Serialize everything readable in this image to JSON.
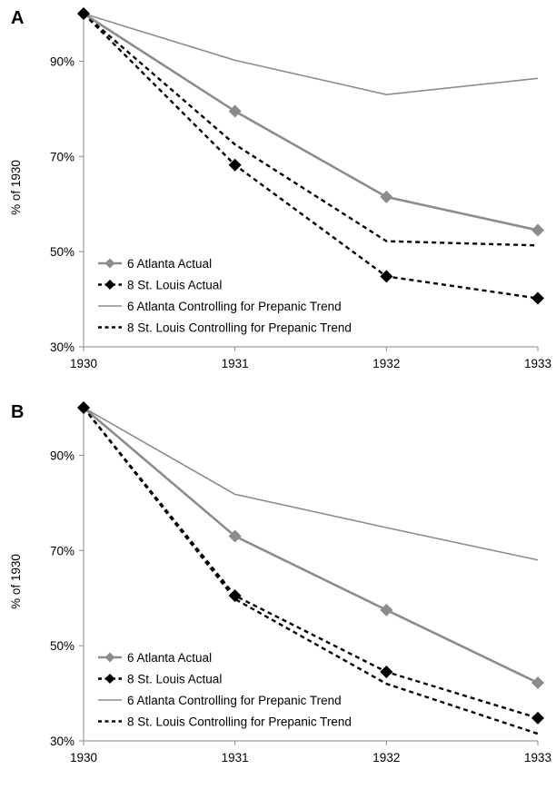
{
  "chart_data": [
    {
      "panel_label": "A",
      "type": "line",
      "ylabel": "% of 1930",
      "x": [
        "1930",
        "1931",
        "1932",
        "1933"
      ],
      "yticks": [
        "30%",
        "50%",
        "70%",
        "90%"
      ],
      "ylim": [
        30,
        100
      ],
      "legend_position": "bottom-left",
      "series": [
        {
          "name": "6 Atlanta Actual",
          "color": "#8c8c8c",
          "style": "solid",
          "marker": "diamond",
          "values": [
            100,
            79.5,
            61.5,
            54.5
          ]
        },
        {
          "name": "8 St. Louis Actual",
          "color": "#000000",
          "style": "dashed",
          "marker": "diamond",
          "values": [
            100,
            68.2,
            44.8,
            40.2
          ]
        },
        {
          "name": "6 Atlanta Controlling for Prepanic Trend",
          "color": "#8c8c8c",
          "style": "solid-thin",
          "marker": "none",
          "values": [
            100,
            90.2,
            83.0,
            86.4
          ]
        },
        {
          "name": "8 St. Louis Controlling for Prepanic Trend",
          "color": "#000000",
          "style": "dashed",
          "marker": "none",
          "values": [
            100,
            72.5,
            52.2,
            51.3
          ]
        }
      ]
    },
    {
      "panel_label": "B",
      "type": "line",
      "ylabel": "% of 1930",
      "x": [
        "1930",
        "1931",
        "1932",
        "1933"
      ],
      "yticks": [
        "30%",
        "50%",
        "70%",
        "90%"
      ],
      "ylim": [
        30,
        100
      ],
      "legend_position": "bottom-left",
      "series": [
        {
          "name": "6 Atlanta Actual",
          "color": "#8c8c8c",
          "style": "solid",
          "marker": "diamond",
          "values": [
            100,
            73.0,
            57.5,
            42.2
          ]
        },
        {
          "name": "8 St. Louis Actual",
          "color": "#000000",
          "style": "dashed",
          "marker": "diamond",
          "values": [
            100,
            60.5,
            44.5,
            34.8
          ]
        },
        {
          "name": "6 Atlanta Controlling for Prepanic Trend",
          "color": "#8c8c8c",
          "style": "solid-thin",
          "marker": "none",
          "values": [
            100,
            81.8,
            74.8,
            68.0
          ]
        },
        {
          "name": "8 St. Louis Controlling for Prepanic Trend",
          "color": "#000000",
          "style": "dashed",
          "marker": "none",
          "values": [
            100,
            59.8,
            42.0,
            31.5
          ]
        }
      ]
    }
  ]
}
